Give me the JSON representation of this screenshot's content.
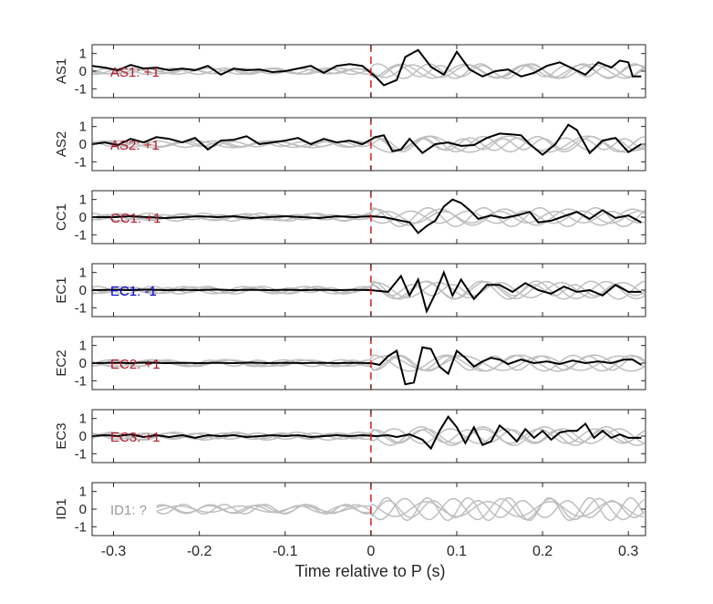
{
  "chart_data": {
    "type": "line",
    "xlabel": "Time relative to P (s)",
    "xlim": [
      -0.325,
      0.32
    ],
    "ylim": [
      -1.5,
      1.5
    ],
    "xticks": [
      -0.3,
      -0.2,
      -0.1,
      0,
      0.1,
      0.2,
      0.3
    ],
    "xtick_labels": [
      "-0.3",
      "-0.2",
      "-0.1",
      "0",
      "0.1",
      "0.2",
      "0.3"
    ],
    "yticks": [
      1,
      0,
      -1
    ],
    "ytick_labels": [
      "1",
      "0",
      "-1"
    ],
    "marker_x": 0,
    "colors": {
      "trace": "#000000",
      "background_traces": "#bfbfbf",
      "marker": "#e41a1c",
      "positive": "#b2182b",
      "negative": "#0000cc",
      "unknown": "#999999"
    },
    "panels": [
      {
        "ylabel": "AS1",
        "annotation": "AS1: +1",
        "polarity": "positive",
        "black": [
          [
            -0.325,
            0.3
          ],
          [
            -0.31,
            0.2
          ],
          [
            -0.295,
            0.05
          ],
          [
            -0.28,
            0.35
          ],
          [
            -0.265,
            0.15
          ],
          [
            -0.25,
            0.2
          ],
          [
            -0.235,
            0.05
          ],
          [
            -0.22,
            0.15
          ],
          [
            -0.205,
            0.05
          ],
          [
            -0.19,
            0.3
          ],
          [
            -0.175,
            -0.2
          ],
          [
            -0.16,
            0.15
          ],
          [
            -0.145,
            0.05
          ],
          [
            -0.13,
            0.1
          ],
          [
            -0.115,
            -0.05
          ],
          [
            -0.1,
            0.0
          ],
          [
            -0.085,
            0.15
          ],
          [
            -0.07,
            0.3
          ],
          [
            -0.055,
            -0.1
          ],
          [
            -0.04,
            0.3
          ],
          [
            -0.025,
            0.4
          ],
          [
            -0.01,
            0.3
          ],
          [
            0.005,
            -0.3
          ],
          [
            0.015,
            -0.8
          ],
          [
            0.03,
            -0.5
          ],
          [
            0.04,
            0.8
          ],
          [
            0.055,
            1.2
          ],
          [
            0.07,
            0.25
          ],
          [
            0.085,
            -0.2
          ],
          [
            0.1,
            1.1
          ],
          [
            0.115,
            0.1
          ],
          [
            0.13,
            -0.3
          ],
          [
            0.145,
            0.0
          ],
          [
            0.16,
            0.1
          ],
          [
            0.175,
            -0.3
          ],
          [
            0.19,
            -0.1
          ],
          [
            0.205,
            0.3
          ],
          [
            0.22,
            0.5
          ],
          [
            0.235,
            0.15
          ],
          [
            0.25,
            -0.2
          ],
          [
            0.265,
            0.5
          ],
          [
            0.28,
            0.2
          ],
          [
            0.29,
            0.6
          ],
          [
            0.3,
            0.5
          ],
          [
            0.305,
            -0.3
          ],
          [
            0.315,
            -0.3
          ]
        ]
      },
      {
        "ylabel": "AS2",
        "annotation": "AS2: +1",
        "polarity": "positive",
        "black": [
          [
            -0.325,
            0.0
          ],
          [
            -0.31,
            0.1
          ],
          [
            -0.295,
            -0.05
          ],
          [
            -0.28,
            0.3
          ],
          [
            -0.265,
            0.1
          ],
          [
            -0.25,
            0.4
          ],
          [
            -0.235,
            0.3
          ],
          [
            -0.22,
            0.1
          ],
          [
            -0.205,
            0.35
          ],
          [
            -0.19,
            -0.3
          ],
          [
            -0.175,
            0.2
          ],
          [
            -0.16,
            0.25
          ],
          [
            -0.145,
            0.45
          ],
          [
            -0.13,
            0.0
          ],
          [
            -0.115,
            0.1
          ],
          [
            -0.1,
            0.2
          ],
          [
            -0.085,
            0.35
          ],
          [
            -0.07,
            0.0
          ],
          [
            -0.055,
            0.3
          ],
          [
            -0.04,
            0.1
          ],
          [
            -0.025,
            0.2
          ],
          [
            -0.01,
            0.0
          ],
          [
            0.005,
            0.4
          ],
          [
            0.015,
            0.5
          ],
          [
            0.025,
            -0.4
          ],
          [
            0.035,
            -0.3
          ],
          [
            0.045,
            0.3
          ],
          [
            0.06,
            -0.5
          ],
          [
            0.075,
            0.0
          ],
          [
            0.09,
            0.1
          ],
          [
            0.105,
            -0.1
          ],
          [
            0.12,
            -0.05
          ],
          [
            0.135,
            0.35
          ],
          [
            0.15,
            0.6
          ],
          [
            0.165,
            0.55
          ],
          [
            0.175,
            0.5
          ],
          [
            0.185,
            0.0
          ],
          [
            0.2,
            -0.6
          ],
          [
            0.215,
            0.0
          ],
          [
            0.23,
            1.1
          ],
          [
            0.24,
            0.8
          ],
          [
            0.255,
            -0.5
          ],
          [
            0.27,
            0.2
          ],
          [
            0.285,
            0.35
          ],
          [
            0.3,
            -0.45
          ],
          [
            0.315,
            0.0
          ]
        ]
      },
      {
        "ylabel": "CC1",
        "annotation": "CC1: +1",
        "polarity": "positive",
        "black": [
          [
            -0.325,
            0.0
          ],
          [
            -0.3,
            0.0
          ],
          [
            -0.28,
            0.05
          ],
          [
            -0.26,
            0.0
          ],
          [
            -0.24,
            -0.05
          ],
          [
            -0.22,
            0.0
          ],
          [
            -0.2,
            0.05
          ],
          [
            -0.18,
            0.0
          ],
          [
            -0.16,
            0.05
          ],
          [
            -0.14,
            -0.05
          ],
          [
            -0.12,
            0.0
          ],
          [
            -0.1,
            0.05
          ],
          [
            -0.08,
            0.0
          ],
          [
            -0.06,
            -0.05
          ],
          [
            -0.04,
            0.05
          ],
          [
            -0.02,
            0.0
          ],
          [
            0.0,
            0.05
          ],
          [
            0.015,
            0.0
          ],
          [
            0.03,
            -0.15
          ],
          [
            0.045,
            -0.3
          ],
          [
            0.055,
            -0.9
          ],
          [
            0.065,
            -0.5
          ],
          [
            0.075,
            -0.2
          ],
          [
            0.085,
            0.6
          ],
          [
            0.095,
            1.0
          ],
          [
            0.105,
            0.8
          ],
          [
            0.115,
            0.4
          ],
          [
            0.125,
            -0.1
          ],
          [
            0.14,
            0.1
          ],
          [
            0.155,
            -0.05
          ],
          [
            0.17,
            0.1
          ],
          [
            0.185,
            0.3
          ],
          [
            0.195,
            -0.3
          ],
          [
            0.21,
            -0.2
          ],
          [
            0.225,
            0.05
          ],
          [
            0.24,
            0.3
          ],
          [
            0.255,
            -0.1
          ],
          [
            0.27,
            0.4
          ],
          [
            0.285,
            -0.05
          ],
          [
            0.3,
            0.1
          ],
          [
            0.315,
            -0.3
          ]
        ]
      },
      {
        "ylabel": "EC1",
        "annotation": "EC1: -1",
        "polarity": "negative",
        "black": [
          [
            -0.325,
            0.0
          ],
          [
            -0.3,
            0.02
          ],
          [
            -0.28,
            0.0
          ],
          [
            -0.26,
            0.03
          ],
          [
            -0.24,
            0.0
          ],
          [
            -0.22,
            0.02
          ],
          [
            -0.2,
            0.0
          ],
          [
            -0.18,
            0.03
          ],
          [
            -0.16,
            0.0
          ],
          [
            -0.14,
            0.02
          ],
          [
            -0.12,
            0.0
          ],
          [
            -0.1,
            0.02
          ],
          [
            -0.08,
            0.0
          ],
          [
            -0.06,
            0.02
          ],
          [
            -0.04,
            0.0
          ],
          [
            -0.02,
            0.02
          ],
          [
            0.0,
            0.0
          ],
          [
            0.01,
            -0.05
          ],
          [
            0.02,
            -0.1
          ],
          [
            0.035,
            0.8
          ],
          [
            0.045,
            -0.3
          ],
          [
            0.055,
            0.6
          ],
          [
            0.065,
            -1.2
          ],
          [
            0.075,
            -0.2
          ],
          [
            0.085,
            1.0
          ],
          [
            0.095,
            -0.3
          ],
          [
            0.105,
            0.6
          ],
          [
            0.12,
            -0.5
          ],
          [
            0.135,
            0.3
          ],
          [
            0.15,
            0.3
          ],
          [
            0.165,
            -0.1
          ],
          [
            0.18,
            0.4
          ],
          [
            0.195,
            0.0
          ],
          [
            0.21,
            -0.2
          ],
          [
            0.225,
            0.2
          ],
          [
            0.24,
            -0.1
          ],
          [
            0.255,
            0.0
          ],
          [
            0.27,
            -0.3
          ],
          [
            0.285,
            0.3
          ],
          [
            0.3,
            -0.1
          ],
          [
            0.315,
            -0.1
          ]
        ]
      },
      {
        "ylabel": "EC2",
        "annotation": "EC2: +1",
        "polarity": "positive",
        "black": [
          [
            -0.325,
            0.0
          ],
          [
            -0.3,
            0.02
          ],
          [
            -0.28,
            0.0
          ],
          [
            -0.26,
            0.03
          ],
          [
            -0.24,
            0.0
          ],
          [
            -0.22,
            0.02
          ],
          [
            -0.2,
            0.0
          ],
          [
            -0.18,
            0.02
          ],
          [
            -0.16,
            0.0
          ],
          [
            -0.14,
            0.03
          ],
          [
            -0.12,
            0.0
          ],
          [
            -0.1,
            0.02
          ],
          [
            -0.08,
            0.0
          ],
          [
            -0.06,
            0.02
          ],
          [
            -0.04,
            0.0
          ],
          [
            -0.02,
            0.02
          ],
          [
            0.0,
            0.0
          ],
          [
            0.01,
            -0.1
          ],
          [
            0.02,
            0.4
          ],
          [
            0.03,
            0.7
          ],
          [
            0.04,
            -1.2
          ],
          [
            0.05,
            -1.1
          ],
          [
            0.06,
            0.9
          ],
          [
            0.07,
            0.8
          ],
          [
            0.08,
            -0.2
          ],
          [
            0.09,
            -0.6
          ],
          [
            0.1,
            0.7
          ],
          [
            0.11,
            0.3
          ],
          [
            0.12,
            -0.2
          ],
          [
            0.13,
            0.1
          ],
          [
            0.14,
            0.3
          ],
          [
            0.15,
            0.2
          ],
          [
            0.16,
            -0.05
          ],
          [
            0.175,
            0.2
          ],
          [
            0.19,
            0.0
          ],
          [
            0.205,
            0.1
          ],
          [
            0.22,
            -0.05
          ],
          [
            0.235,
            0.15
          ],
          [
            0.25,
            0.0
          ],
          [
            0.265,
            0.1
          ],
          [
            0.28,
            0.0
          ],
          [
            0.295,
            0.2
          ],
          [
            0.305,
            0.2
          ],
          [
            0.315,
            -0.1
          ]
        ]
      },
      {
        "ylabel": "EC3",
        "annotation": "EC3: +1",
        "polarity": "positive",
        "black": [
          [
            -0.325,
            0.0
          ],
          [
            -0.31,
            0.05
          ],
          [
            -0.295,
            0.0
          ],
          [
            -0.28,
            0.1
          ],
          [
            -0.265,
            -0.05
          ],
          [
            -0.25,
            0.05
          ],
          [
            -0.235,
            -0.05
          ],
          [
            -0.22,
            0.05
          ],
          [
            -0.205,
            -0.1
          ],
          [
            -0.19,
            0.05
          ],
          [
            -0.175,
            0.0
          ],
          [
            -0.16,
            0.05
          ],
          [
            -0.145,
            -0.05
          ],
          [
            -0.13,
            0.0
          ],
          [
            -0.115,
            0.05
          ],
          [
            -0.1,
            0.0
          ],
          [
            -0.085,
            0.05
          ],
          [
            -0.07,
            -0.05
          ],
          [
            -0.055,
            0.0
          ],
          [
            -0.04,
            0.05
          ],
          [
            -0.025,
            0.0
          ],
          [
            -0.01,
            0.05
          ],
          [
            0.005,
            0.0
          ],
          [
            0.02,
            0.05
          ],
          [
            0.03,
            -0.05
          ],
          [
            0.045,
            0.1
          ],
          [
            0.06,
            -0.2
          ],
          [
            0.07,
            -0.7
          ],
          [
            0.08,
            0.3
          ],
          [
            0.09,
            1.1
          ],
          [
            0.1,
            0.5
          ],
          [
            0.11,
            -0.4
          ],
          [
            0.12,
            0.5
          ],
          [
            0.13,
            -0.5
          ],
          [
            0.14,
            -0.3
          ],
          [
            0.15,
            0.6
          ],
          [
            0.16,
            0.2
          ],
          [
            0.17,
            -0.3
          ],
          [
            0.18,
            0.4
          ],
          [
            0.19,
            -0.1
          ],
          [
            0.2,
            0.3
          ],
          [
            0.21,
            -0.2
          ],
          [
            0.22,
            0.2
          ],
          [
            0.23,
            0.3
          ],
          [
            0.24,
            0.3
          ],
          [
            0.25,
            0.7
          ],
          [
            0.26,
            -0.1
          ],
          [
            0.27,
            0.3
          ],
          [
            0.28,
            -0.1
          ],
          [
            0.29,
            0.1
          ],
          [
            0.3,
            -0.1
          ],
          [
            0.315,
            -0.1
          ]
        ]
      },
      {
        "ylabel": "ID1",
        "annotation": "ID1: ?",
        "polarity": "unknown",
        "black": []
      }
    ]
  }
}
